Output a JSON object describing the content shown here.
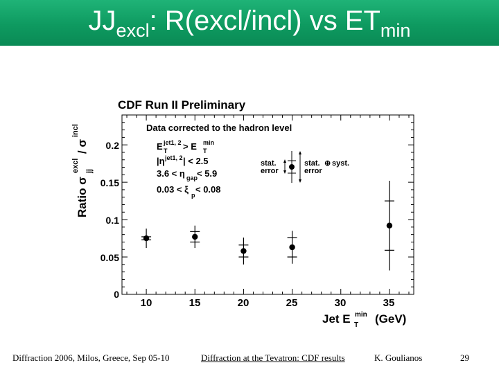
{
  "slide": {
    "title_main": "JJ",
    "title_sub": "excl",
    "title_rest": ": R(excl/incl) vs ET",
    "title_sub2": "min"
  },
  "footer": {
    "left": "Diffraction 2006, Milos, Greece, Sep 05-10",
    "center": "Diffraction at the Tevatron: CDF results",
    "right": "K. Goulianos",
    "page": "29"
  },
  "colors": {
    "title_bar": "#0e9a60",
    "title_text": "#ffffff"
  },
  "chart_data": {
    "type": "scatter",
    "title": "CDF Run II Preliminary",
    "xlabel": "Jet E_T^min (GeV)",
    "ylabel": "Ratio σ_jj^excl / σ^incl",
    "xlim": [
      7.5,
      37.5
    ],
    "ylim": [
      0,
      0.24
    ],
    "xticks": [
      "10",
      "15",
      "20",
      "25",
      "30",
      "35"
    ],
    "yticks": [
      "0",
      "0.05",
      "0.1",
      "0.15",
      "0.2"
    ],
    "grid": false,
    "series": [
      {
        "x": [
          10,
          15,
          20,
          25,
          35
        ],
        "y": [
          0.075,
          0.077,
          0.058,
          0.063,
          0.092
        ],
        "stat_err": [
          0.002,
          0.007,
          0.008,
          0.013,
          0.033
        ],
        "total_err_low": [
          0.013,
          0.015,
          0.018,
          0.022,
          0.06
        ],
        "total_err_high": [
          0.013,
          0.015,
          0.018,
          0.022,
          0.06
        ]
      }
    ],
    "annotations": {
      "header": "Data corrected to the hadron level",
      "cut1_a": "E",
      "cut1_b": "T",
      "cut1_c": "jet1, 2",
      "cut1_d": " > E",
      "cut1_e": "T",
      "cut1_f": "min",
      "cut2_a": "|η",
      "cut2_b": "jet1, 2",
      "cut2_c": "| < 2.5",
      "cut3_a": "3.6 < η",
      "cut3_b": "gap",
      "cut3_c": " < 5.9",
      "cut4_a": "0.03 < ξ",
      "cut4_b": "p",
      "cut4_c": " < 0.08",
      "legend_stat_1": "stat.",
      "legend_stat_2": "error",
      "legend_syst_1": "stat.",
      "legend_syst_plus": "⊕",
      "legend_syst_2": "syst.",
      "legend_syst_3": "error"
    }
  }
}
